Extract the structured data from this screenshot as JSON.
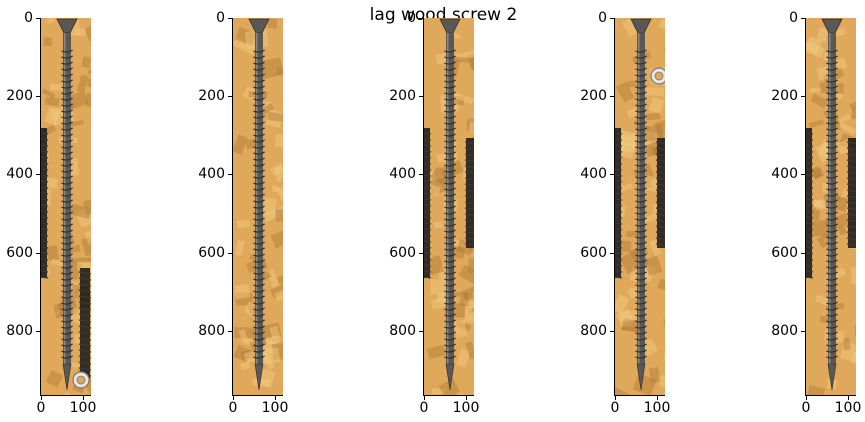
{
  "figure": {
    "title": "lag wood screw 2"
  },
  "axes_common": {
    "yticks": [
      "0",
      "200",
      "400",
      "600",
      "800"
    ],
    "xticks": [
      "0",
      "100"
    ]
  },
  "panels": [
    {
      "id": "p1",
      "extra_objects": [
        "screw-left",
        "screw-bottom-right",
        "washer-bottom-right"
      ]
    },
    {
      "id": "p2",
      "extra_objects": []
    },
    {
      "id": "p3",
      "extra_objects": [
        "screw-left",
        "screw-right"
      ]
    },
    {
      "id": "p4",
      "extra_objects": [
        "washer-top-right",
        "screw-left",
        "screw-right"
      ]
    },
    {
      "id": "p5",
      "extra_objects": [
        "screw-left",
        "screw-right"
      ]
    }
  ],
  "colors": {
    "wood_base": "#e0a85a",
    "wood_light": "#f2cc85",
    "wood_dark": "#b07a38",
    "screw": "#5a5855",
    "screw_highlight": "#8a8784",
    "screw_shadow": "#2e2d2b"
  }
}
